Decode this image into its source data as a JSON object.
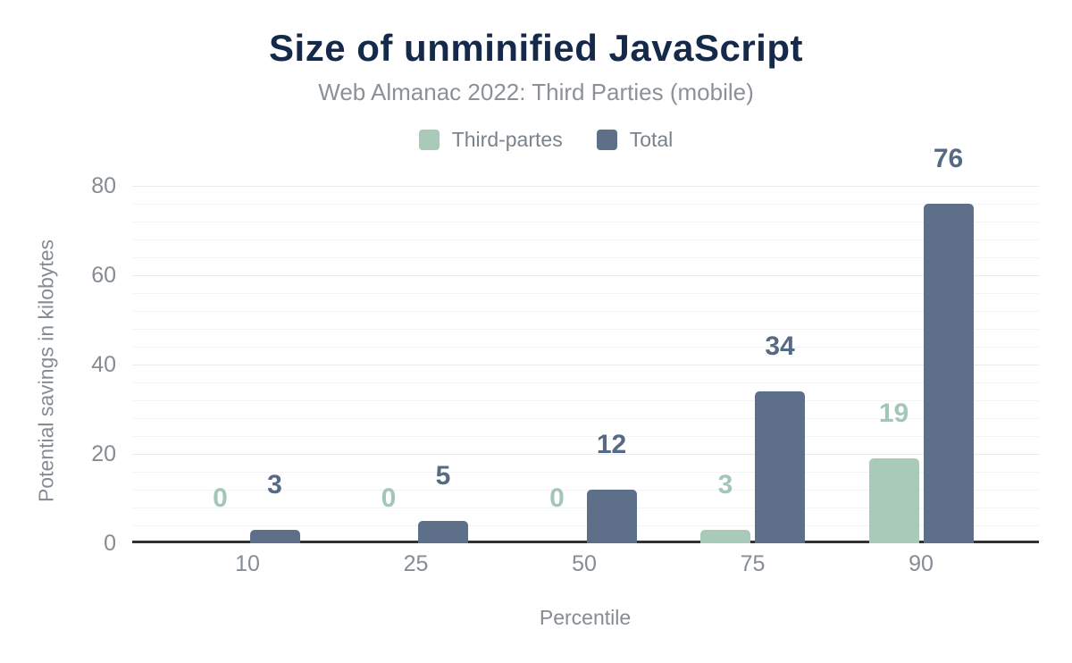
{
  "header": {
    "title": "Size of unminified JavaScript",
    "subtitle": "Web Almanac 2022: Third Parties (mobile)"
  },
  "chart_data": {
    "type": "bar",
    "title": "Size of unminified JavaScript",
    "subtitle": "Web Almanac 2022: Third Parties (mobile)",
    "categories": [
      "10",
      "25",
      "50",
      "75",
      "90"
    ],
    "series": [
      {
        "name": "Third-partes",
        "color": "#a9c9b9",
        "label_color": "#a3c7b5",
        "values": [
          0,
          0,
          0,
          3,
          19
        ]
      },
      {
        "name": "Total",
        "color": "#5e7089",
        "label_color": "#566a85",
        "values": [
          3,
          5,
          12,
          34,
          76
        ]
      }
    ],
    "xlabel": "Percentile",
    "ylabel": "Potential savings in kilobytes",
    "yticks": [
      0,
      20,
      40,
      60,
      80
    ],
    "ylim": [
      0,
      85
    ],
    "grid": "horizontal",
    "minor_gridlines_between_majors": 4,
    "legend_position": "top",
    "data_labels": true,
    "colors": {
      "title": "#15294b",
      "subtitle": "#8b9196",
      "axis_text": "#858c93",
      "axis_line": "#313237",
      "major_grid": "#ebebed",
      "minor_grid": "#f4f4f6",
      "background": "#ffffff"
    }
  }
}
